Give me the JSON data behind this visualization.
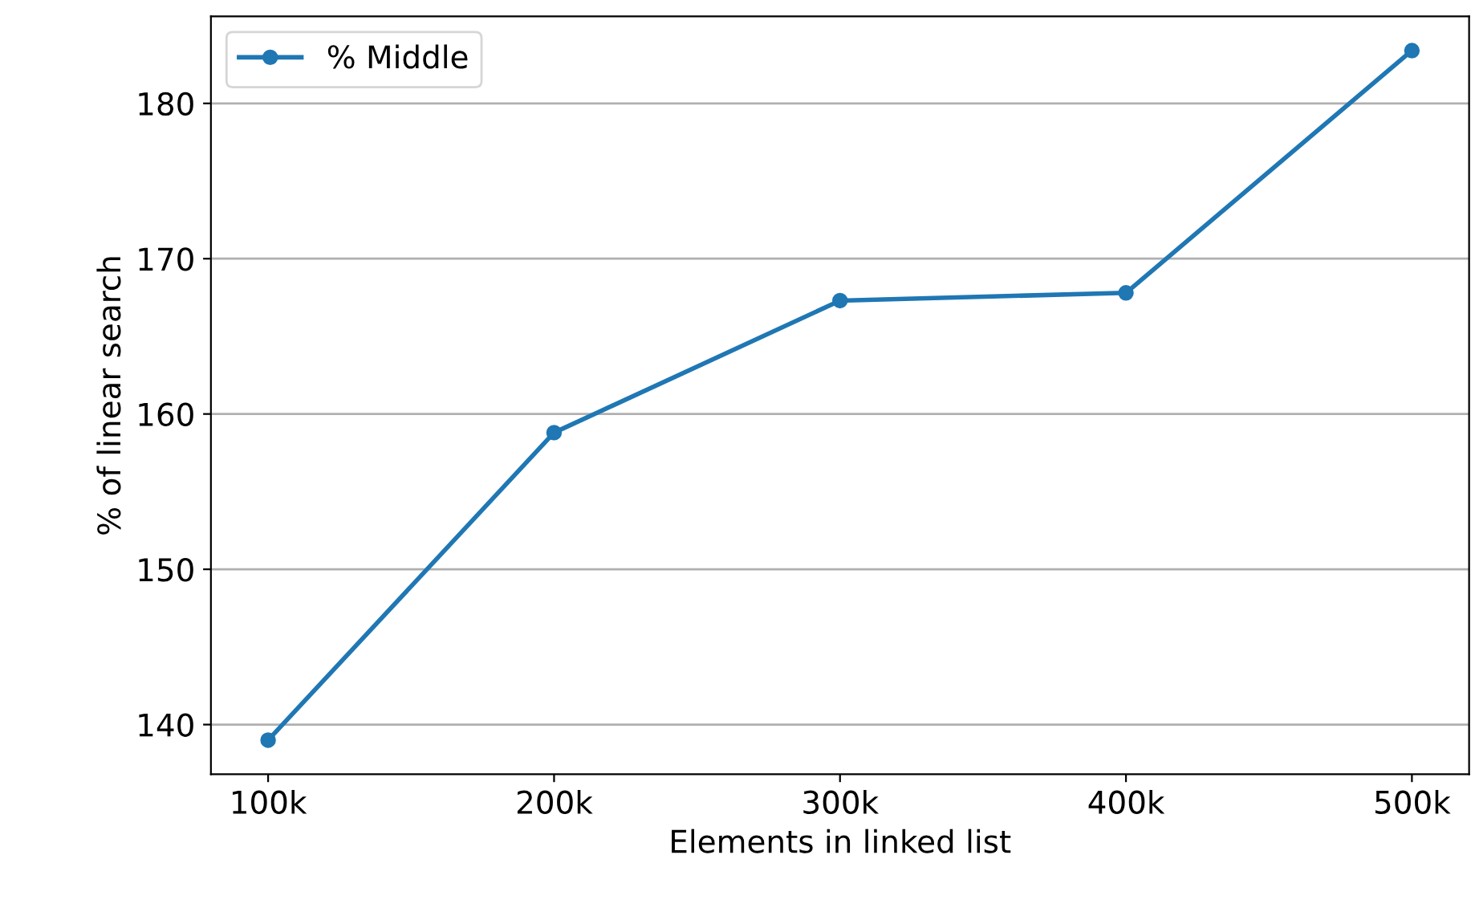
{
  "chart_data": {
    "type": "line",
    "xlabel": "Elements in linked list",
    "ylabel": "% of linear search",
    "x": [
      100000,
      200000,
      300000,
      400000,
      500000
    ],
    "series": [
      {
        "name": "% Middle",
        "color": "#1f77b4",
        "values": [
          139.0,
          158.8,
          167.3,
          167.8,
          183.4
        ]
      }
    ],
    "xlim": [
      80000,
      520000
    ],
    "xticks": [
      {
        "value": 100000,
        "label": "100k"
      },
      {
        "value": 200000,
        "label": "200k"
      },
      {
        "value": 300000,
        "label": "300k"
      },
      {
        "value": 400000,
        "label": "400k"
      },
      {
        "value": 500000,
        "label": "500k"
      }
    ],
    "ylim": [
      136.8,
      185.6
    ],
    "yticks": [
      140,
      150,
      160,
      170,
      180
    ],
    "grid": "y",
    "legend": "top left",
    "marker": "circle",
    "line_style": "solid"
  }
}
